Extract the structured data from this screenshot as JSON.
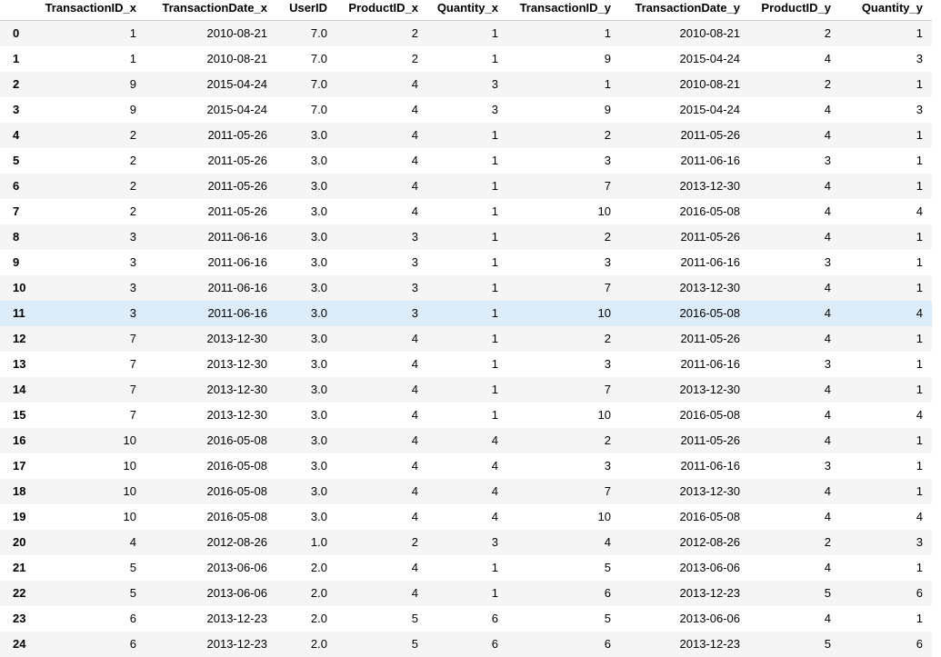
{
  "columns": [
    "",
    "TransactionID_x",
    "TransactionDate_x",
    "UserID",
    "ProductID_x",
    "Quantity_x",
    "TransactionID_y",
    "TransactionDate_y",
    "ProductID_y",
    "Quantity_y"
  ],
  "highlighted_row": 11,
  "colors": {
    "stripe": "#f5f5f5",
    "hover": "#dcecf9"
  },
  "rows": [
    [
      "0",
      "1",
      "2010-08-21",
      "7.0",
      "2",
      "1",
      "1",
      "2010-08-21",
      "2",
      "1"
    ],
    [
      "1",
      "1",
      "2010-08-21",
      "7.0",
      "2",
      "1",
      "9",
      "2015-04-24",
      "4",
      "3"
    ],
    [
      "2",
      "9",
      "2015-04-24",
      "7.0",
      "4",
      "3",
      "1",
      "2010-08-21",
      "2",
      "1"
    ],
    [
      "3",
      "9",
      "2015-04-24",
      "7.0",
      "4",
      "3",
      "9",
      "2015-04-24",
      "4",
      "3"
    ],
    [
      "4",
      "2",
      "2011-05-26",
      "3.0",
      "4",
      "1",
      "2",
      "2011-05-26",
      "4",
      "1"
    ],
    [
      "5",
      "2",
      "2011-05-26",
      "3.0",
      "4",
      "1",
      "3",
      "2011-06-16",
      "3",
      "1"
    ],
    [
      "6",
      "2",
      "2011-05-26",
      "3.0",
      "4",
      "1",
      "7",
      "2013-12-30",
      "4",
      "1"
    ],
    [
      "7",
      "2",
      "2011-05-26",
      "3.0",
      "4",
      "1",
      "10",
      "2016-05-08",
      "4",
      "4"
    ],
    [
      "8",
      "3",
      "2011-06-16",
      "3.0",
      "3",
      "1",
      "2",
      "2011-05-26",
      "4",
      "1"
    ],
    [
      "9",
      "3",
      "2011-06-16",
      "3.0",
      "3",
      "1",
      "3",
      "2011-06-16",
      "3",
      "1"
    ],
    [
      "10",
      "3",
      "2011-06-16",
      "3.0",
      "3",
      "1",
      "7",
      "2013-12-30",
      "4",
      "1"
    ],
    [
      "11",
      "3",
      "2011-06-16",
      "3.0",
      "3",
      "1",
      "10",
      "2016-05-08",
      "4",
      "4"
    ],
    [
      "12",
      "7",
      "2013-12-30",
      "3.0",
      "4",
      "1",
      "2",
      "2011-05-26",
      "4",
      "1"
    ],
    [
      "13",
      "7",
      "2013-12-30",
      "3.0",
      "4",
      "1",
      "3",
      "2011-06-16",
      "3",
      "1"
    ],
    [
      "14",
      "7",
      "2013-12-30",
      "3.0",
      "4",
      "1",
      "7",
      "2013-12-30",
      "4",
      "1"
    ],
    [
      "15",
      "7",
      "2013-12-30",
      "3.0",
      "4",
      "1",
      "10",
      "2016-05-08",
      "4",
      "4"
    ],
    [
      "16",
      "10",
      "2016-05-08",
      "3.0",
      "4",
      "4",
      "2",
      "2011-05-26",
      "4",
      "1"
    ],
    [
      "17",
      "10",
      "2016-05-08",
      "3.0",
      "4",
      "4",
      "3",
      "2011-06-16",
      "3",
      "1"
    ],
    [
      "18",
      "10",
      "2016-05-08",
      "3.0",
      "4",
      "4",
      "7",
      "2013-12-30",
      "4",
      "1"
    ],
    [
      "19",
      "10",
      "2016-05-08",
      "3.0",
      "4",
      "4",
      "10",
      "2016-05-08",
      "4",
      "4"
    ],
    [
      "20",
      "4",
      "2012-08-26",
      "1.0",
      "2",
      "3",
      "4",
      "2012-08-26",
      "2",
      "3"
    ],
    [
      "21",
      "5",
      "2013-06-06",
      "2.0",
      "4",
      "1",
      "5",
      "2013-06-06",
      "4",
      "1"
    ],
    [
      "22",
      "5",
      "2013-06-06",
      "2.0",
      "4",
      "1",
      "6",
      "2013-12-23",
      "5",
      "6"
    ],
    [
      "23",
      "6",
      "2013-12-23",
      "2.0",
      "5",
      "6",
      "5",
      "2013-06-06",
      "4",
      "1"
    ],
    [
      "24",
      "6",
      "2013-12-23",
      "2.0",
      "5",
      "6",
      "6",
      "2013-12-23",
      "5",
      "6"
    ]
  ]
}
